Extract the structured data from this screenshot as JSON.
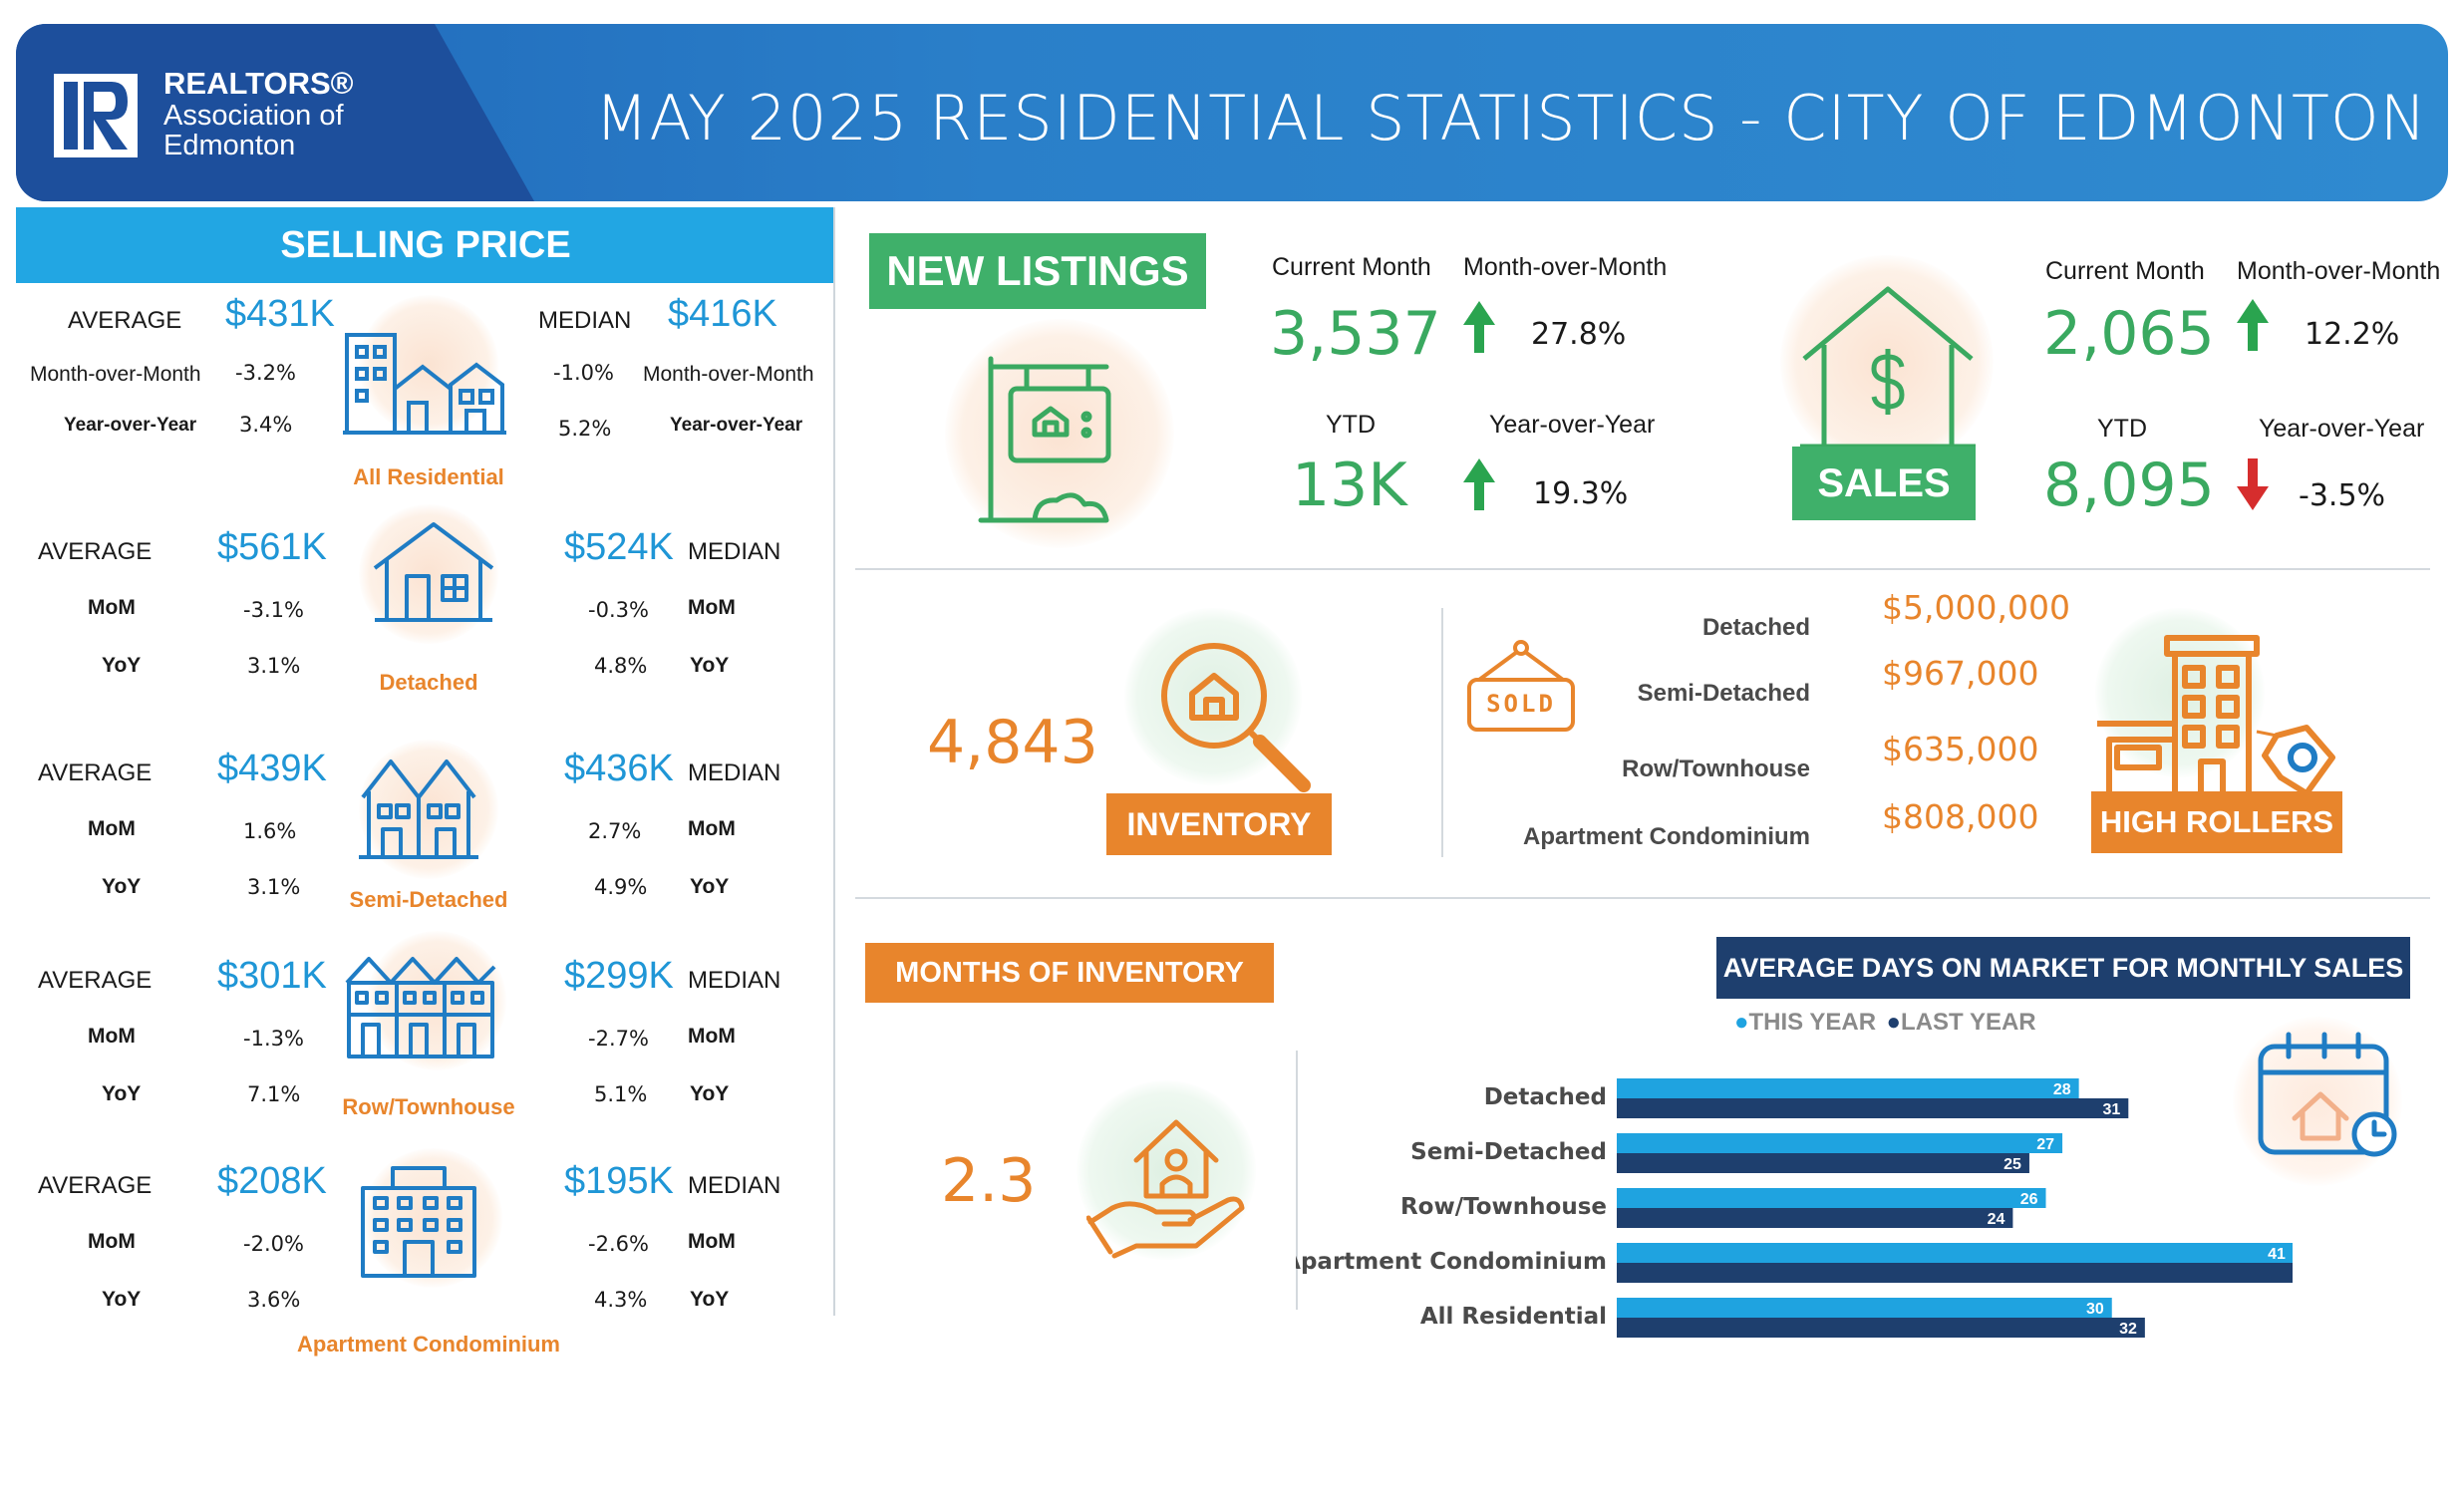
{
  "header": {
    "brand_line1": "REALTORS®",
    "brand_line2": "Association of",
    "brand_line3": "Edmonton",
    "title": "MAY 2025 RESIDENTIAL STATISTICS - CITY OF EDMONTON"
  },
  "selling_price": {
    "heading": "SELLING PRICE",
    "all_residential": {
      "category": "All Residential",
      "average_label": "AVERAGE",
      "average": "$431K",
      "median_label": "MEDIAN",
      "median": "$416K",
      "mom_label": "Month-over-Month",
      "yoy_label": "Year-over-Year",
      "avg_mom": "-3.2%",
      "avg_yoy": "3.4%",
      "med_mom": "-1.0%",
      "med_yoy": "5.2%"
    },
    "types": [
      {
        "category": "Detached",
        "average_label": "AVERAGE",
        "average": "$561K",
        "median": "$524K",
        "median_label": "MEDIAN",
        "mom_label": "MoM",
        "yoy_label": "YoY",
        "avg_mom": "-3.1%",
        "avg_yoy": "3.1%",
        "med_mom": "-0.3%",
        "med_yoy": "4.8%"
      },
      {
        "category": "Semi-Detached",
        "average_label": "AVERAGE",
        "average": "$439K",
        "median": "$436K",
        "median_label": "MEDIAN",
        "mom_label": "MoM",
        "yoy_label": "YoY",
        "avg_mom": "1.6%",
        "avg_yoy": "3.1%",
        "med_mom": "2.7%",
        "med_yoy": "4.9%"
      },
      {
        "category": "Row/Townhouse",
        "average_label": "AVERAGE",
        "average": "$301K",
        "median": "$299K",
        "median_label": "MEDIAN",
        "mom_label": "MoM",
        "yoy_label": "YoY",
        "avg_mom": "-1.3%",
        "avg_yoy": "7.1%",
        "med_mom": "-2.7%",
        "med_yoy": "5.1%"
      },
      {
        "category": "Apartment Condominium",
        "average_label": "AVERAGE",
        "average": "$208K",
        "median": "$195K",
        "median_label": "MEDIAN",
        "mom_label": "MoM",
        "yoy_label": "YoY",
        "avg_mom": "-2.0%",
        "avg_yoy": "3.6%",
        "med_mom": "-2.6%",
        "med_yoy": "4.3%"
      }
    ]
  },
  "new_listings": {
    "badge": "NEW  LISTINGS",
    "current_month_label": "Current Month",
    "current_month": "3,537",
    "mom_label": "Month-over-Month",
    "mom": "27.8%",
    "ytd_label": "YTD",
    "ytd": "13K",
    "yoy_label": "Year-over-Year",
    "yoy": "19.3%"
  },
  "sales": {
    "badge": "SALES",
    "current_month_label": "Current Month",
    "current_month": "2,065",
    "mom_label": "Month-over-Month",
    "mom": "12.2%",
    "ytd_label": "YTD",
    "ytd": "8,095",
    "yoy_label": "Year-over-Year",
    "yoy": "-3.5%"
  },
  "inventory": {
    "value": "4,843",
    "badge": "INVENTORY"
  },
  "high_rollers": {
    "sign": "SOLD",
    "badge": "HIGH ROLLERS",
    "items": [
      {
        "label": "Detached",
        "value": "$5,000,000"
      },
      {
        "label": "Semi-Detached",
        "value": "$967,000"
      },
      {
        "label": "Row/Townhouse",
        "value": "$635,000"
      },
      {
        "label": "Apartment Condominium",
        "value": "$808,000"
      }
    ]
  },
  "months_of_inventory": {
    "badge": "MONTHS OF INVENTORY",
    "value": "2.3"
  },
  "colors": {
    "this_year": "#1fa3e0",
    "last_year": "#1e3f6e",
    "green": "#3aa960",
    "orange": "#e8852c",
    "blue": "#1f96d6"
  },
  "chart_data": {
    "type": "bar",
    "title": "AVERAGE DAYS ON MARKET FOR MONTHLY SALES",
    "orientation": "horizontal",
    "categories": [
      "Detached",
      "Semi-Detached",
      "Row/Townhouse",
      "Apartment Condominium",
      "All Residential"
    ],
    "series": [
      {
        "name": "THIS YEAR",
        "values": [
          28,
          27,
          26,
          41,
          30
        ]
      },
      {
        "name": "LAST YEAR",
        "values": [
          31,
          25,
          24,
          43,
          32
        ]
      }
    ],
    "legend": "top"
  }
}
